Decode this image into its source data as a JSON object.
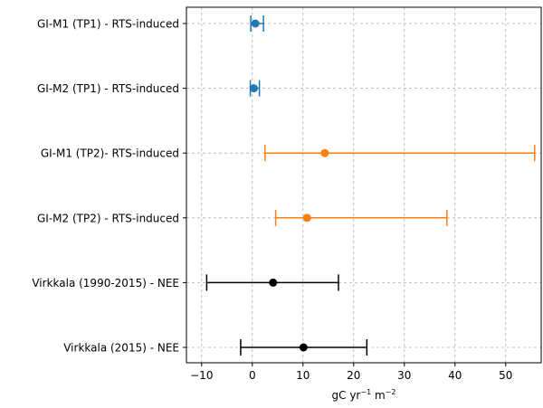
{
  "chart_data": {
    "type": "errorbar",
    "orientation": "horizontal",
    "xlabel_base": "gC yr",
    "xlabel_exp1": "−1",
    "xlabel_mid": " m",
    "xlabel_exp2": "−2",
    "xlim": [
      -13,
      57
    ],
    "xticks": [
      -10,
      0,
      10,
      20,
      30,
      40,
      50
    ],
    "xtick_labels": [
      "−10",
      "0",
      "10",
      "20",
      "30",
      "40",
      "50"
    ],
    "grid": true,
    "rows": [
      {
        "label": "GI-M1 (TP1) - RTS-induced",
        "value": 0.6,
        "low": -0.3,
        "high": 2.2,
        "color": "#1f77b4"
      },
      {
        "label": "GI-M2 (TP1) - RTS-induced",
        "value": 0.3,
        "low": -0.4,
        "high": 1.4,
        "color": "#1f77b4"
      },
      {
        "label": "GI-M1 (TP2)- RTS-induced",
        "value": 14.3,
        "low": 2.5,
        "high": 55.7,
        "color": "#ff7f0e"
      },
      {
        "label": "GI-M2 (TP2) - RTS-induced",
        "value": 10.8,
        "low": 4.6,
        "high": 38.4,
        "color": "#ff7f0e"
      },
      {
        "label": "Virkkala (1990-2015) - NEE",
        "value": 4.1,
        "low": -9.0,
        "high": 17.0,
        "color": "#000000"
      },
      {
        "label": "Virkkala (2015) - NEE",
        "value": 10.1,
        "low": -2.3,
        "high": 22.6,
        "color": "#000000"
      }
    ]
  }
}
